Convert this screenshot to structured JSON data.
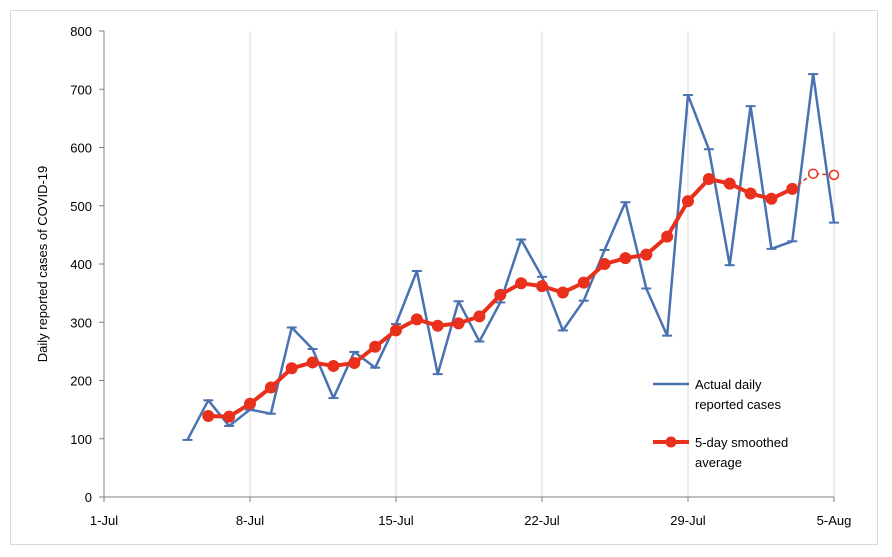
{
  "chart_data": {
    "type": "line",
    "title": "",
    "xlabel": "",
    "ylabel": "Daily reported cases of COVID-19",
    "x_start": "1-Jul",
    "x_end": "5-Aug",
    "x_ticks": [
      "1-Jul",
      "8-Jul",
      "15-Jul",
      "22-Jul",
      "29-Jul",
      "5-Aug"
    ],
    "ylim": [
      0,
      800
    ],
    "y_ticks": [
      0,
      100,
      200,
      300,
      400,
      500,
      600,
      700,
      800
    ],
    "grid": "vertical",
    "legend_position": "bottom-right",
    "series": [
      {
        "name": "Actual daily reported cases",
        "color": "#4a72b0",
        "marker": "dash",
        "points": [
          {
            "date": "5-Jul",
            "y": 98
          },
          {
            "date": "6-Jul",
            "y": 166
          },
          {
            "date": "7-Jul",
            "y": 122
          },
          {
            "date": "8-Jul",
            "y": 150
          },
          {
            "date": "9-Jul",
            "y": 143
          },
          {
            "date": "10-Jul",
            "y": 291
          },
          {
            "date": "11-Jul",
            "y": 254
          },
          {
            "date": "12-Jul",
            "y": 170
          },
          {
            "date": "13-Jul",
            "y": 249
          },
          {
            "date": "14-Jul",
            "y": 222
          },
          {
            "date": "15-Jul",
            "y": 297
          },
          {
            "date": "16-Jul",
            "y": 388
          },
          {
            "date": "17-Jul",
            "y": 211
          },
          {
            "date": "18-Jul",
            "y": 336
          },
          {
            "date": "19-Jul",
            "y": 267
          },
          {
            "date": "20-Jul",
            "y": 334
          },
          {
            "date": "21-Jul",
            "y": 442
          },
          {
            "date": "22-Jul",
            "y": 378
          },
          {
            "date": "23-Jul",
            "y": 286
          },
          {
            "date": "24-Jul",
            "y": 337
          },
          {
            "date": "25-Jul",
            "y": 424
          },
          {
            "date": "26-Jul",
            "y": 506
          },
          {
            "date": "27-Jul",
            "y": 358
          },
          {
            "date": "28-Jul",
            "y": 277
          },
          {
            "date": "29-Jul",
            "y": 690
          },
          {
            "date": "30-Jul",
            "y": 597
          },
          {
            "date": "31-Jul",
            "y": 398
          },
          {
            "date": "1-Aug",
            "y": 671
          },
          {
            "date": "2-Aug",
            "y": 426
          },
          {
            "date": "3-Aug",
            "y": 439
          },
          {
            "date": "4-Aug",
            "y": 726
          },
          {
            "date": "5-Aug",
            "y": 471
          }
        ]
      },
      {
        "name": "5-day smoothed average",
        "color": "#e8301d",
        "marker": "circle",
        "points": [
          {
            "date": "6-Jul",
            "y": 139
          },
          {
            "date": "7-Jul",
            "y": 138
          },
          {
            "date": "8-Jul",
            "y": 160
          },
          {
            "date": "9-Jul",
            "y": 188
          },
          {
            "date": "10-Jul",
            "y": 221
          },
          {
            "date": "11-Jul",
            "y": 231
          },
          {
            "date": "12-Jul",
            "y": 225
          },
          {
            "date": "13-Jul",
            "y": 230
          },
          {
            "date": "14-Jul",
            "y": 258
          },
          {
            "date": "15-Jul",
            "y": 286
          },
          {
            "date": "16-Jul",
            "y": 305
          },
          {
            "date": "17-Jul",
            "y": 294
          },
          {
            "date": "18-Jul",
            "y": 298
          },
          {
            "date": "19-Jul",
            "y": 310
          },
          {
            "date": "20-Jul",
            "y": 347
          },
          {
            "date": "21-Jul",
            "y": 367
          },
          {
            "date": "22-Jul",
            "y": 362
          },
          {
            "date": "23-Jul",
            "y": 351
          },
          {
            "date": "24-Jul",
            "y": 368
          },
          {
            "date": "25-Jul",
            "y": 400
          },
          {
            "date": "26-Jul",
            "y": 410
          },
          {
            "date": "27-Jul",
            "y": 416
          },
          {
            "date": "28-Jul",
            "y": 447
          },
          {
            "date": "29-Jul",
            "y": 508
          },
          {
            "date": "30-Jul",
            "y": 546
          },
          {
            "date": "31-Jul",
            "y": 538
          },
          {
            "date": "1-Aug",
            "y": 521
          },
          {
            "date": "2-Aug",
            "y": 512
          },
          {
            "date": "3-Aug",
            "y": 529
          }
        ],
        "projected_points": [
          {
            "date": "3-Aug",
            "y": 529
          },
          {
            "date": "4-Aug",
            "y": 555
          },
          {
            "date": "5-Aug",
            "y": 553
          }
        ]
      }
    ],
    "legend": [
      {
        "line1": "Actual daily",
        "line2": "reported cases"
      },
      {
        "line1": "5-day smoothed",
        "line2": "average"
      }
    ]
  }
}
